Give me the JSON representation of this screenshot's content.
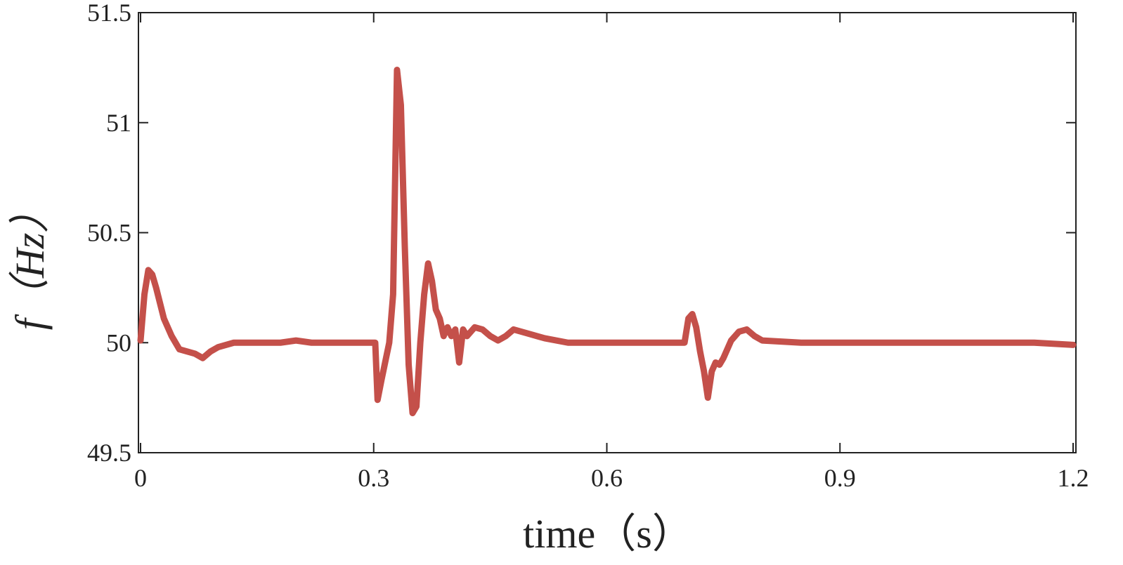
{
  "chart_data": {
    "type": "line",
    "x_label": "time（s）",
    "y_label": "f（Hz）",
    "xlim": [
      0,
      1.2
    ],
    "ylim": [
      49.5,
      51.5
    ],
    "xticks": [
      0,
      0.3,
      0.6,
      0.9,
      1.2
    ],
    "yticks": [
      49.5,
      50,
      50.5,
      51,
      51.5
    ],
    "grid": false,
    "x": [
      0,
      0.005,
      0.01,
      0.015,
      0.02,
      0.03,
      0.04,
      0.05,
      0.06,
      0.07,
      0.08,
      0.09,
      0.1,
      0.12,
      0.15,
      0.18,
      0.2,
      0.22,
      0.25,
      0.28,
      0.3,
      0.302,
      0.305,
      0.31,
      0.32,
      0.325,
      0.33,
      0.335,
      0.34,
      0.345,
      0.35,
      0.355,
      0.36,
      0.365,
      0.37,
      0.375,
      0.38,
      0.385,
      0.39,
      0.395,
      0.4,
      0.405,
      0.41,
      0.415,
      0.42,
      0.43,
      0.44,
      0.45,
      0.46,
      0.47,
      0.48,
      0.5,
      0.52,
      0.55,
      0.6,
      0.65,
      0.7,
      0.705,
      0.71,
      0.715,
      0.72,
      0.725,
      0.73,
      0.735,
      0.74,
      0.745,
      0.75,
      0.76,
      0.77,
      0.78,
      0.79,
      0.8,
      0.85,
      0.9,
      0.95,
      1.0,
      1.05,
      1.1,
      1.15,
      1.2
    ],
    "series": [
      {
        "color": "#c4504a",
        "values": [
          50.01,
          50.22,
          50.33,
          50.31,
          50.25,
          50.11,
          50.03,
          49.97,
          49.96,
          49.95,
          49.93,
          49.96,
          49.98,
          50.0,
          50.0,
          50.0,
          50.01,
          50.0,
          50.0,
          50.0,
          50.0,
          50.0,
          49.74,
          49.83,
          50.0,
          50.22,
          51.24,
          51.08,
          50.44,
          49.9,
          49.68,
          49.71,
          50.0,
          50.22,
          50.36,
          50.28,
          50.15,
          50.11,
          50.03,
          50.07,
          50.03,
          50.06,
          49.91,
          50.06,
          50.03,
          50.07,
          50.06,
          50.03,
          50.01,
          50.03,
          50.06,
          50.04,
          50.02,
          50.0,
          50.0,
          50.0,
          50.0,
          50.11,
          50.13,
          50.07,
          49.96,
          49.87,
          49.75,
          49.87,
          49.91,
          49.9,
          49.93,
          50.01,
          50.05,
          50.06,
          50.03,
          50.01,
          50.0,
          50.0,
          50.0,
          50.0,
          50.0,
          50.0,
          50.0,
          49.99
        ]
      }
    ]
  }
}
